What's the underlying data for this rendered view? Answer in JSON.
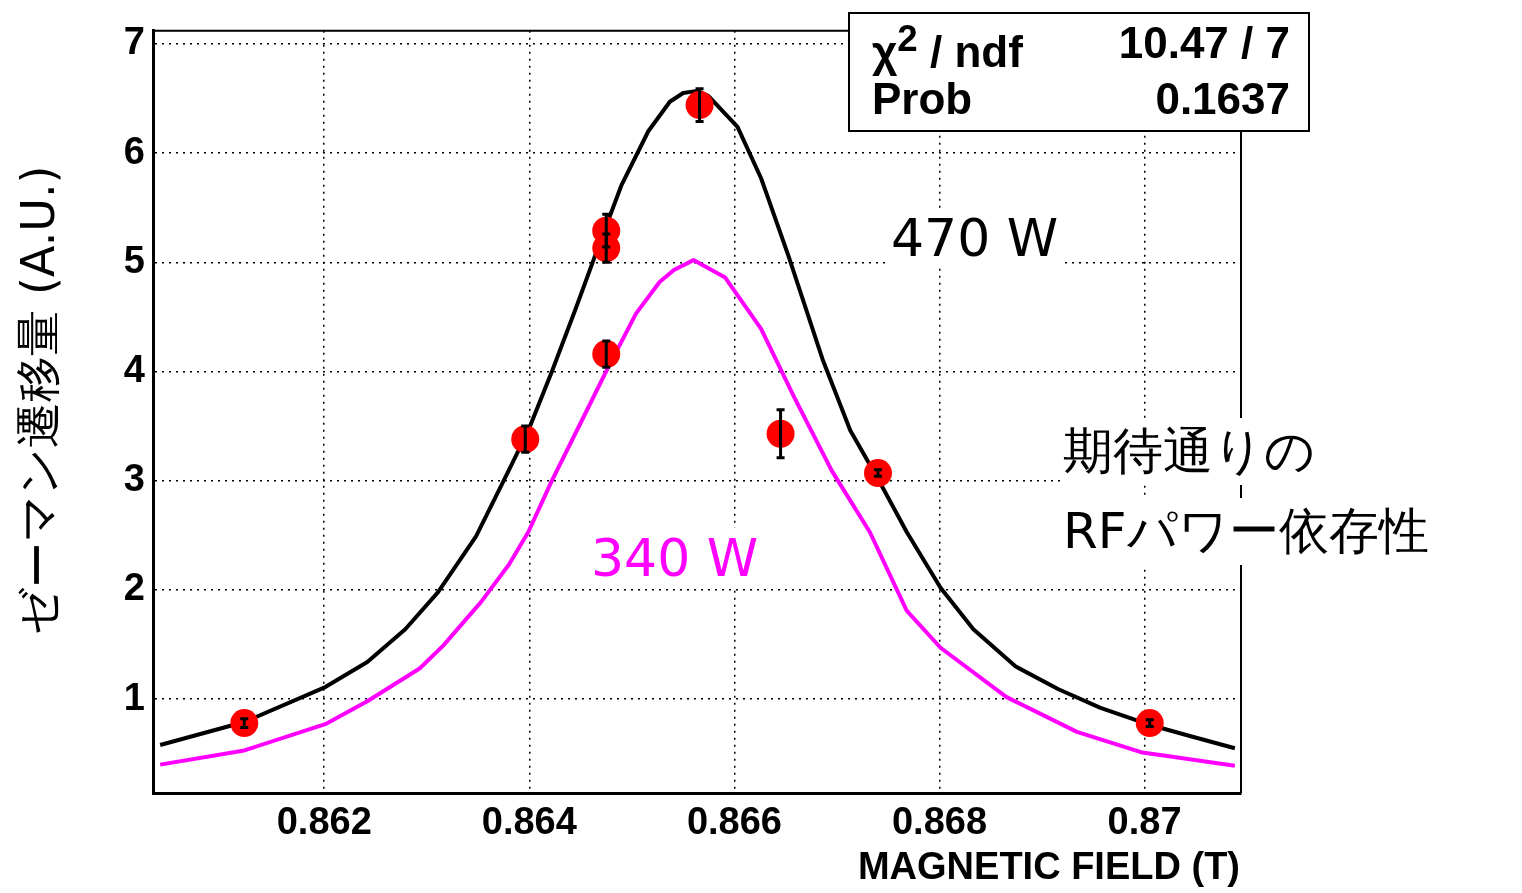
{
  "chart_data": {
    "type": "line",
    "xlabel": "MAGNETIC FIELD (T)",
    "ylabel": "ゼーマン遷移量 (A.U.)",
    "xlim": [
      0.86033,
      0.87094
    ],
    "ylim": [
      0.14,
      7.12
    ],
    "xticks": [
      0.862,
      0.864,
      0.866,
      0.868,
      0.87
    ],
    "yticks": [
      1,
      2,
      3,
      4,
      5,
      6,
      7
    ],
    "grid": true,
    "legend": false,
    "line_style": "solid",
    "annotations": [
      "χ$^{2}$ / ndf",
      "10.47 / 7",
      "Prob",
      "0.1637",
      "期待通りの",
      "RFパワー依存性"
    ],
    "series": [
      {
        "type": "scatter",
        "color": "#ff0000",
        "marker": "circle",
        "x": [
          0.86122,
          0.86396,
          0.86475,
          0.86475,
          0.86475,
          0.86566,
          0.86645,
          0.8674,
          0.87005
        ],
        "values": [
          0.78,
          3.38,
          5.29,
          5.13,
          4.16,
          6.44,
          3.43,
          3.07,
          0.78
        ],
        "errors": [
          0.04,
          0.12,
          0.15,
          0.13,
          0.12,
          0.15,
          0.22,
          0.03,
          0.03
        ]
      },
      {
        "name": "470 W",
        "color": "#000000",
        "marker": "none",
        "x": [
          0.8604,
          0.86122,
          0.86201,
          0.86242,
          0.86279,
          0.86311,
          0.86348,
          0.86375,
          0.86399,
          0.86422,
          0.86445,
          0.86468,
          0.8649,
          0.86516,
          0.86537,
          0.8655,
          0.86564,
          0.86575,
          0.86603,
          0.86626,
          0.86653,
          0.86686,
          0.86713,
          0.86741,
          0.86768,
          0.86801,
          0.86833,
          0.86874,
          0.86916,
          0.86957,
          0.87003,
          0.87045,
          0.87088
        ],
        "values": [
          0.58,
          0.79,
          1.11,
          1.34,
          1.64,
          1.98,
          2.49,
          3.0,
          3.46,
          4.0,
          4.57,
          5.16,
          5.71,
          6.2,
          6.47,
          6.55,
          6.57,
          6.52,
          6.24,
          5.77,
          5.05,
          4.11,
          3.46,
          3.0,
          2.53,
          2.02,
          1.64,
          1.3,
          1.09,
          0.92,
          0.77,
          0.66,
          0.55
        ]
      },
      {
        "type": "line",
        "name": "340 W",
        "color": "#ff00ff",
        "marker": "none",
        "x": [
          0.8604,
          0.86122,
          0.86201,
          0.86242,
          0.86293,
          0.86316,
          0.86353,
          0.8638,
          0.86399,
          0.86422,
          0.86449,
          0.86477,
          0.86504,
          0.86527,
          0.86541,
          0.8656,
          0.86591,
          0.86626,
          0.86658,
          0.86695,
          0.86732,
          0.86768,
          0.86801,
          0.86865,
          0.86934,
          0.86998,
          0.87088
        ],
        "values": [
          0.4,
          0.53,
          0.77,
          0.98,
          1.28,
          1.49,
          1.89,
          2.23,
          2.53,
          3.0,
          3.51,
          4.04,
          4.53,
          4.82,
          4.93,
          5.02,
          4.86,
          4.39,
          3.77,
          3.09,
          2.53,
          1.81,
          1.47,
          1.02,
          0.7,
          0.51,
          0.39
        ]
      }
    ]
  }
}
